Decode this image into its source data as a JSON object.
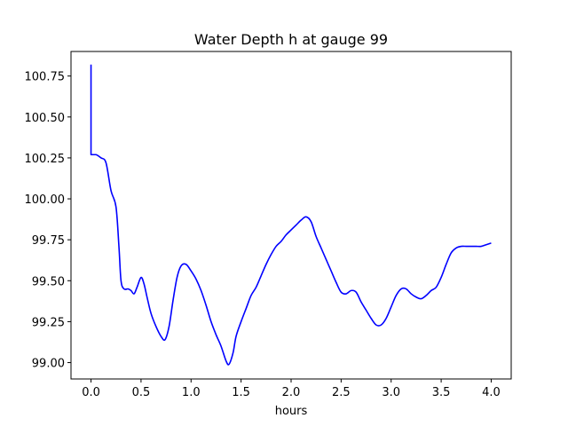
{
  "chart_data": {
    "type": "line",
    "title": "Water Depth h at gauge 99",
    "xlabel": "hours",
    "ylabel": "",
    "xlim": [
      -0.2,
      4.2
    ],
    "ylim": [
      98.9,
      100.9
    ],
    "xticks": [
      0.0,
      0.5,
      1.0,
      1.5,
      2.0,
      2.5,
      3.0,
      3.5,
      4.0
    ],
    "xtick_labels": [
      "0.0",
      "0.5",
      "1.0",
      "1.5",
      "2.0",
      "2.5",
      "3.0",
      "3.5",
      "4.0"
    ],
    "yticks": [
      99.0,
      99.25,
      99.5,
      99.75,
      100.0,
      100.25,
      100.5,
      100.75
    ],
    "ytick_labels": [
      "99.00",
      "99.25",
      "99.50",
      "99.75",
      "100.00",
      "100.25",
      "100.50",
      "100.75"
    ],
    "grid": false,
    "series": [
      {
        "color": "#0000ff",
        "x": [
          0.0,
          0.0,
          0.0,
          0.05,
          0.1,
          0.15,
          0.2,
          0.25,
          0.28,
          0.3,
          0.33,
          0.37,
          0.4,
          0.43,
          0.46,
          0.5,
          0.53,
          0.56,
          0.6,
          0.65,
          0.7,
          0.74,
          0.78,
          0.82,
          0.86,
          0.9,
          0.95,
          1.0,
          1.05,
          1.1,
          1.15,
          1.2,
          1.25,
          1.3,
          1.35,
          1.38,
          1.42,
          1.45,
          1.5,
          1.55,
          1.6,
          1.65,
          1.7,
          1.75,
          1.8,
          1.85,
          1.9,
          1.95,
          2.0,
          2.05,
          2.1,
          2.15,
          2.2,
          2.25,
          2.3,
          2.35,
          2.4,
          2.45,
          2.5,
          2.55,
          2.6,
          2.65,
          2.7,
          2.75,
          2.8,
          2.85,
          2.9,
          2.95,
          3.0,
          3.05,
          3.1,
          3.15,
          3.2,
          3.25,
          3.3,
          3.35,
          3.4,
          3.45,
          3.5,
          3.55,
          3.6,
          3.65,
          3.7,
          3.75,
          3.8,
          3.85,
          3.9,
          3.95,
          4.0
        ],
        "y": [
          100.82,
          100.55,
          100.27,
          100.27,
          100.25,
          100.22,
          100.05,
          99.95,
          99.7,
          99.5,
          99.45,
          99.45,
          99.44,
          99.42,
          99.46,
          99.52,
          99.48,
          99.4,
          99.3,
          99.22,
          99.16,
          99.14,
          99.22,
          99.38,
          99.52,
          99.59,
          99.6,
          99.56,
          99.51,
          99.44,
          99.35,
          99.25,
          99.17,
          99.1,
          99.01,
          98.99,
          99.06,
          99.16,
          99.25,
          99.33,
          99.41,
          99.46,
          99.53,
          99.6,
          99.66,
          99.71,
          99.74,
          99.78,
          99.81,
          99.84,
          99.87,
          99.89,
          99.86,
          99.77,
          99.7,
          99.63,
          99.56,
          99.49,
          99.43,
          99.42,
          99.44,
          99.43,
          99.37,
          99.32,
          99.27,
          99.23,
          99.23,
          99.27,
          99.34,
          99.41,
          99.45,
          99.45,
          99.42,
          99.4,
          99.39,
          99.41,
          99.44,
          99.46,
          99.52,
          99.6,
          99.67,
          99.7,
          99.71,
          99.71,
          99.71,
          99.71,
          99.71,
          99.72,
          99.73
        ]
      }
    ]
  }
}
